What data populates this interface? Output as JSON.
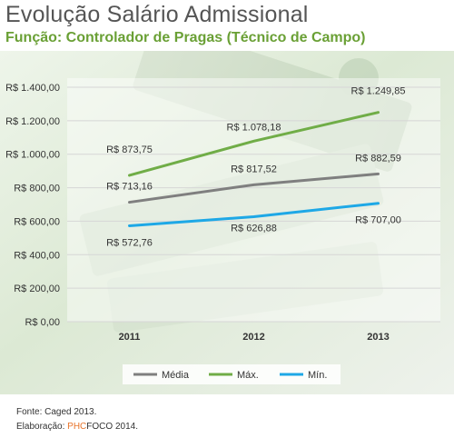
{
  "colors": {
    "media": "#7f7f7f",
    "max": "#70ad47",
    "min": "#1ea8e6",
    "accent": "#e8742a",
    "title": "#555555",
    "subtitle": "#6aa035"
  },
  "footer": {
    "source": "Fonte: Caged 2013.",
    "credit_prefix": "Elaboração: ",
    "credit_brand_a": "PHC",
    "credit_brand_b": "FOCO",
    "credit_suffix": " 2014."
  },
  "chart_data": {
    "type": "line",
    "title": "Evolução Salário Admissional",
    "subtitle": "Função: Controlador de Pragas (Técnico de Campo)",
    "categories": [
      "2011",
      "2012",
      "2013"
    ],
    "ylim": [
      0,
      1400
    ],
    "yticks": [
      0,
      200,
      400,
      600,
      800,
      1000,
      1200,
      1400
    ],
    "ytick_labels": [
      "R$ 0,00",
      "R$ 200,00",
      "R$ 400,00",
      "R$ 600,00",
      "R$ 800,00",
      "R$ 1.000,00",
      "R$ 1.200,00",
      "R$ 1.400,00"
    ],
    "grid": true,
    "legend_position": "bottom",
    "series": [
      {
        "name": "Média",
        "values": [
          713.16,
          817.52,
          882.59
        ],
        "labels": [
          "R$ 713,16",
          "R$ 817,52",
          "R$ 882,59"
        ],
        "color": "#7f7f7f"
      },
      {
        "name": "Máx.",
        "values": [
          873.75,
          1078.18,
          1249.85
        ],
        "labels": [
          "R$ 873,75",
          "R$ 1.078,18",
          "R$ 1.249,85"
        ],
        "color": "#70ad47"
      },
      {
        "name": "Mín.",
        "values": [
          572.76,
          626.88,
          707.0
        ],
        "labels": [
          "R$ 572,76",
          "R$ 626,88",
          "R$ 707,00"
        ],
        "color": "#1ea8e6"
      }
    ]
  }
}
